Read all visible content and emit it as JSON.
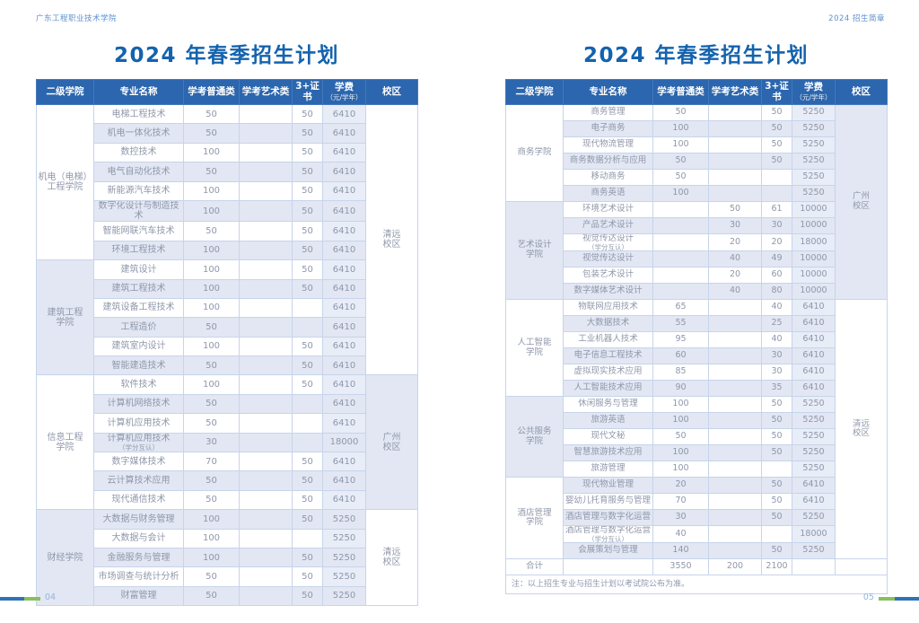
{
  "page_header": {
    "left": "广东工程职业技术学院",
    "right": "2024 招生简章"
  },
  "footer": {
    "left_page_number": "04",
    "right_page_number": "05",
    "bar_blue": "#2e74b6",
    "bar_green": "#8abf5e"
  },
  "colors": {
    "table_header_bg": "#2b66ae",
    "row_alt": "#e2e7f3",
    "title_blue": "#1463ae",
    "cell_text": "#8f97aa",
    "border": "#c7d4ea"
  },
  "columns": [
    {
      "label": "二级学院"
    },
    {
      "label": "专业名称"
    },
    {
      "label": "学考普通类"
    },
    {
      "label": "学考艺术类"
    },
    {
      "label": "3+证书"
    },
    {
      "label": "学费",
      "sub": "（元/学年）"
    },
    {
      "label": "校区"
    }
  ],
  "pages": [
    {
      "title": "2024 年春季招生计划",
      "groups": [
        {
          "college": [
            "机电（电梯）",
            "工程学院"
          ],
          "tint": false,
          "rows": [
            {
              "major": "电梯工程技术",
              "general": "50",
              "art": "",
              "cert": "50",
              "fee": "6410"
            },
            {
              "major": "机电一体化技术",
              "general": "50",
              "art": "",
              "cert": "50",
              "fee": "6410"
            },
            {
              "major": "数控技术",
              "general": "100",
              "art": "",
              "cert": "50",
              "fee": "6410"
            },
            {
              "major": "电气自动化技术",
              "general": "50",
              "art": "",
              "cert": "50",
              "fee": "6410"
            },
            {
              "major": "新能源汽车技术",
              "general": "100",
              "art": "",
              "cert": "50",
              "fee": "6410"
            },
            {
              "major": "数字化设计与制造技术",
              "general": "100",
              "art": "",
              "cert": "50",
              "fee": "6410"
            },
            {
              "major": "智能网联汽车技术",
              "general": "50",
              "art": "",
              "cert": "50",
              "fee": "6410"
            },
            {
              "major": "环境工程技术",
              "general": "100",
              "art": "",
              "cert": "50",
              "fee": "6410"
            }
          ]
        },
        {
          "college": [
            "建筑工程",
            "学院"
          ],
          "tint": true,
          "rows": [
            {
              "major": "建筑设计",
              "general": "100",
              "art": "",
              "cert": "50",
              "fee": "6410"
            },
            {
              "major": "建筑工程技术",
              "general": "100",
              "art": "",
              "cert": "50",
              "fee": "6410"
            },
            {
              "major": "建筑设备工程技术",
              "general": "100",
              "art": "",
              "cert": "",
              "fee": "6410"
            },
            {
              "major": "工程造价",
              "general": "50",
              "art": "",
              "cert": "",
              "fee": "6410"
            },
            {
              "major": "建筑室内设计",
              "general": "100",
              "art": "",
              "cert": "50",
              "fee": "6410"
            },
            {
              "major": "智能建造技术",
              "general": "50",
              "art": "",
              "cert": "50",
              "fee": "6410"
            }
          ]
        },
        {
          "college": [
            "信息工程",
            "学院"
          ],
          "tint": false,
          "rows": [
            {
              "major": "软件技术",
              "general": "100",
              "art": "",
              "cert": "50",
              "fee": "6410"
            },
            {
              "major": "计算机网络技术",
              "general": "50",
              "art": "",
              "cert": "",
              "fee": "6410"
            },
            {
              "major": "计算机应用技术",
              "general": "50",
              "art": "",
              "cert": "",
              "fee": "6410"
            },
            {
              "major": "计算机应用技术",
              "major_sub": "（学分互认）",
              "general": "30",
              "art": "",
              "cert": "",
              "fee": "18000"
            },
            {
              "major": "数字媒体技术",
              "general": "70",
              "art": "",
              "cert": "50",
              "fee": "6410"
            },
            {
              "major": "云计算技术应用",
              "general": "50",
              "art": "",
              "cert": "50",
              "fee": "6410"
            },
            {
              "major": "现代通信技术",
              "general": "50",
              "art": "",
              "cert": "50",
              "fee": "6410"
            }
          ]
        },
        {
          "college": [
            "财经学院"
          ],
          "tint": true,
          "rows": [
            {
              "major": "大数据与财务管理",
              "general": "100",
              "art": "",
              "cert": "50",
              "fee": "5250"
            },
            {
              "major": "大数据与会计",
              "general": "100",
              "art": "",
              "cert": "",
              "fee": "5250"
            },
            {
              "major": "金融服务与管理",
              "general": "100",
              "art": "",
              "cert": "50",
              "fee": "5250"
            },
            {
              "major": "市场调查与统计分析",
              "general": "50",
              "art": "",
              "cert": "50",
              "fee": "5250"
            },
            {
              "major": "财富管理",
              "general": "50",
              "art": "",
              "cert": "50",
              "fee": "5250"
            }
          ]
        }
      ],
      "campuses": [
        {
          "lines": [
            "清远",
            "校区"
          ],
          "start": 0,
          "span": 14,
          "tint": false
        },
        {
          "lines": [
            "广州",
            "校区"
          ],
          "start": 14,
          "span": 7,
          "tint": true
        },
        {
          "lines": [
            "清远",
            "校区"
          ],
          "start": 21,
          "span": 5,
          "tint": false
        }
      ]
    },
    {
      "title": "2024 年春季招生计划",
      "groups": [
        {
          "college": [
            "商务学院"
          ],
          "tint": false,
          "rows": [
            {
              "major": "商务管理",
              "general": "50",
              "art": "",
              "cert": "50",
              "fee": "5250"
            },
            {
              "major": "电子商务",
              "general": "100",
              "art": "",
              "cert": "50",
              "fee": "5250"
            },
            {
              "major": "现代物流管理",
              "general": "100",
              "art": "",
              "cert": "50",
              "fee": "5250"
            },
            {
              "major": "商务数据分析与应用",
              "general": "50",
              "art": "",
              "cert": "50",
              "fee": "5250"
            },
            {
              "major": "移动商务",
              "general": "50",
              "art": "",
              "cert": "",
              "fee": "5250"
            },
            {
              "major": "商务英语",
              "general": "100",
              "art": "",
              "cert": "",
              "fee": "5250"
            }
          ]
        },
        {
          "college": [
            "艺术设计",
            "学院"
          ],
          "tint": true,
          "rows": [
            {
              "major": "环境艺术设计",
              "general": "",
              "art": "50",
              "cert": "61",
              "fee": "10000"
            },
            {
              "major": "产品艺术设计",
              "general": "",
              "art": "30",
              "cert": "30",
              "fee": "10000"
            },
            {
              "major": "视觉传达设计",
              "major_sub": "（学分互认）",
              "general": "",
              "art": "20",
              "cert": "20",
              "fee": "18000"
            },
            {
              "major": "视觉传达设计",
              "general": "",
              "art": "40",
              "cert": "49",
              "fee": "10000"
            },
            {
              "major": "包装艺术设计",
              "general": "",
              "art": "20",
              "cert": "60",
              "fee": "10000"
            },
            {
              "major": "数字媒体艺术设计",
              "general": "",
              "art": "40",
              "cert": "80",
              "fee": "10000"
            }
          ]
        },
        {
          "college": [
            "人工智能",
            "学院"
          ],
          "tint": false,
          "rows": [
            {
              "major": "物联网应用技术",
              "general": "65",
              "art": "",
              "cert": "40",
              "fee": "6410"
            },
            {
              "major": "大数据技术",
              "general": "55",
              "art": "",
              "cert": "25",
              "fee": "6410"
            },
            {
              "major": "工业机器人技术",
              "general": "95",
              "art": "",
              "cert": "40",
              "fee": "6410"
            },
            {
              "major": "电子信息工程技术",
              "general": "60",
              "art": "",
              "cert": "30",
              "fee": "6410"
            },
            {
              "major": "虚拟现实技术应用",
              "general": "85",
              "art": "",
              "cert": "30",
              "fee": "6410"
            },
            {
              "major": "人工智能技术应用",
              "general": "90",
              "art": "",
              "cert": "35",
              "fee": "6410"
            }
          ]
        },
        {
          "college": [
            "公共服务",
            "学院"
          ],
          "tint": true,
          "rows": [
            {
              "major": "休闲服务与管理",
              "general": "100",
              "art": "",
              "cert": "50",
              "fee": "5250"
            },
            {
              "major": "旅游英语",
              "general": "100",
              "art": "",
              "cert": "50",
              "fee": "5250"
            },
            {
              "major": "现代文秘",
              "general": "50",
              "art": "",
              "cert": "50",
              "fee": "5250"
            },
            {
              "major": "智慧旅游技术应用",
              "general": "100",
              "art": "",
              "cert": "50",
              "fee": "5250"
            },
            {
              "major": "旅游管理",
              "general": "100",
              "art": "",
              "cert": "",
              "fee": "5250"
            }
          ]
        },
        {
          "college": [
            "酒店管理",
            "学院"
          ],
          "tint": false,
          "rows": [
            {
              "major": "现代物业管理",
              "general": "20",
              "art": "",
              "cert": "50",
              "fee": "6410"
            },
            {
              "major": "婴幼儿托育服务与管理",
              "general": "70",
              "art": "",
              "cert": "50",
              "fee": "6410"
            },
            {
              "major": "酒店管理与数字化运营",
              "general": "30",
              "art": "",
              "cert": "50",
              "fee": "5250"
            },
            {
              "major": "酒店管理与数字化运营",
              "major_sub": "（学分互认）",
              "general": "40",
              "art": "",
              "cert": "",
              "fee": "18000"
            },
            {
              "major": "会展策划与管理",
              "general": "140",
              "art": "",
              "cert": "50",
              "fee": "5250"
            }
          ]
        }
      ],
      "campuses": [
        {
          "lines": [
            "广州",
            "校区"
          ],
          "start": 0,
          "span": 12,
          "tint": true
        },
        {
          "lines": [
            "清远",
            "校区"
          ],
          "start": 12,
          "span": 16,
          "tint": false
        }
      ],
      "total": {
        "label": "合计",
        "general": "3550",
        "art": "200",
        "cert": "2100"
      },
      "note": "注：以上招生专业与招生计划以考试院公布为准。"
    }
  ]
}
